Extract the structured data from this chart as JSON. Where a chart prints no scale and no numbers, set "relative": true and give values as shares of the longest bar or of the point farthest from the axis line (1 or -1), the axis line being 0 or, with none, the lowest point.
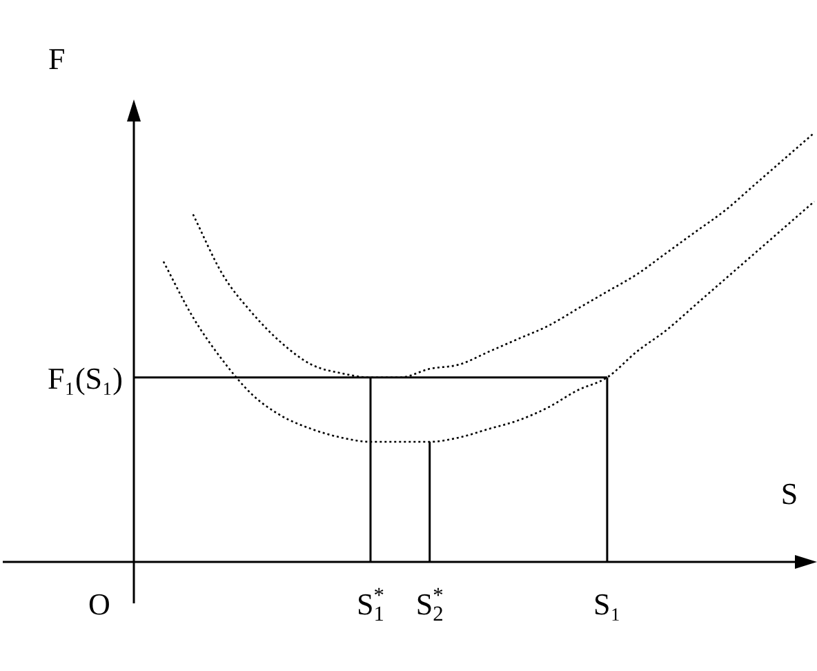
{
  "chart_data": {
    "type": "line",
    "relative": true,
    "xlabel": "S",
    "ylabel": "F",
    "line_style": "dotted",
    "marker": "none",
    "legend": false,
    "categories": [
      null,
      null,
      null,
      null,
      null,
      null,
      null,
      null,
      "S$^{*}$$_{1}$",
      null,
      "S$^{*}$$_{2}$",
      null,
      null,
      null,
      null,
      null,
      "S₁",
      null,
      null,
      null,
      null,
      null,
      null,
      null
    ],
    "series": [
      {
        "color": "#000000",
        "values": [
          null,
          null,
          0.81,
          0.67,
          0.58,
          0.51,
          0.46,
          0.44,
          0.43,
          0.43,
          0.45,
          0.46,
          0.49,
          0.52,
          0.55,
          0.59,
          0.63,
          0.67,
          0.72,
          0.77,
          0.82,
          0.88,
          0.94,
          1
        ]
      },
      {
        "color": "#000000",
        "values": [
          null,
          0.7,
          0.57,
          0.47,
          0.39,
          0.34,
          0.31,
          0.29,
          0.28,
          0.28,
          0.28,
          0.29,
          0.31,
          0.33,
          0.36,
          0.4,
          0.43,
          0.49,
          0.54,
          0.6,
          0.66,
          0.72,
          0.78,
          0.84
        ]
      }
    ],
    "ref_lines": [
      {
        "axis": "y",
        "value": 0.43,
        "label": "F₁(S₁)",
        "color": "#000000"
      },
      {
        "axis": "x",
        "value": "S$^{*}$$_{1}$",
        "color": "#000000"
      },
      {
        "axis": "x",
        "value": "S$^{*}$$_{2}$",
        "color": "#000000"
      },
      {
        "axis": "x",
        "value": "S₁",
        "color": "#000000"
      }
    ],
    "annotations": [
      "O"
    ]
  }
}
